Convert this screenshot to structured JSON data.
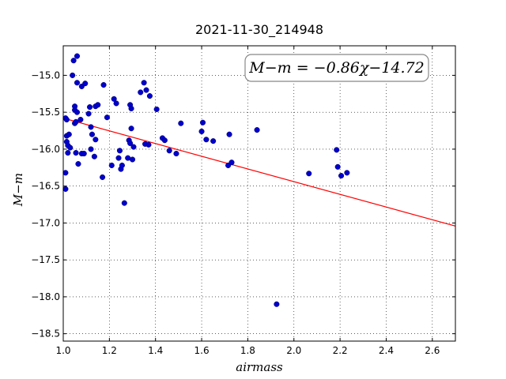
{
  "chart_data": {
    "type": "scatter",
    "title": "2021-11-30_214948",
    "xlabel": "airmass",
    "ylabel": "M−m",
    "xlim": [
      1.0,
      2.7
    ],
    "ylim": [
      -18.6,
      -14.6
    ],
    "y_inverted": true,
    "grid": true,
    "x_ticks": [
      1.0,
      1.2,
      1.4,
      1.6,
      1.8,
      2.0,
      2.2,
      2.4,
      2.6
    ],
    "x_tick_labels": [
      "1.0",
      "1.2",
      "1.4",
      "1.6",
      "1.8",
      "2.0",
      "2.2",
      "2.4",
      "2.6"
    ],
    "y_ticks": [
      -15.0,
      -15.5,
      -16.0,
      -16.5,
      -17.0,
      -17.5,
      -18.0,
      -18.5
    ],
    "y_tick_labels": [
      "−15.0",
      "−15.5",
      "−16.0",
      "−16.5",
      "−17.0",
      "−17.5",
      "−18.0",
      "−18.5"
    ],
    "fit": {
      "slope": -0.86,
      "intercept": -14.72,
      "color": "#ff0000"
    },
    "annotation": "M−m = −0.86χ−14.72",
    "point_color": "#0000cc",
    "points": [
      [
        1.01,
        -16.32
      ],
      [
        1.01,
        -16.54
      ],
      [
        1.01,
        -15.58
      ],
      [
        1.015,
        -15.6
      ],
      [
        1.015,
        -15.82
      ],
      [
        1.015,
        -15.9
      ],
      [
        1.02,
        -15.95
      ],
      [
        1.02,
        -16.05
      ],
      [
        1.025,
        -15.8
      ],
      [
        1.03,
        -15.98
      ],
      [
        1.04,
        -15.0
      ],
      [
        1.045,
        -14.8
      ],
      [
        1.05,
        -15.42
      ],
      [
        1.05,
        -15.47
      ],
      [
        1.05,
        -15.65
      ],
      [
        1.055,
        -15.63
      ],
      [
        1.055,
        -16.05
      ],
      [
        1.06,
        -14.74
      ],
      [
        1.06,
        -15.1
      ],
      [
        1.06,
        -15.5
      ],
      [
        1.065,
        -16.2
      ],
      [
        1.075,
        -15.6
      ],
      [
        1.08,
        -15.15
      ],
      [
        1.08,
        -16.06
      ],
      [
        1.09,
        -16.06
      ],
      [
        1.095,
        -15.11
      ],
      [
        1.11,
        -15.52
      ],
      [
        1.115,
        -15.43
      ],
      [
        1.12,
        -15.7
      ],
      [
        1.12,
        -16.0
      ],
      [
        1.125,
        -15.8
      ],
      [
        1.135,
        -16.1
      ],
      [
        1.14,
        -15.42
      ],
      [
        1.14,
        -15.87
      ],
      [
        1.15,
        -15.4
      ],
      [
        1.17,
        -16.38
      ],
      [
        1.175,
        -15.13
      ],
      [
        1.19,
        -15.57
      ],
      [
        1.21,
        -16.22
      ],
      [
        1.22,
        -15.32
      ],
      [
        1.23,
        -15.38
      ],
      [
        1.24,
        -16.12
      ],
      [
        1.245,
        -16.02
      ],
      [
        1.25,
        -16.27
      ],
      [
        1.255,
        -16.22
      ],
      [
        1.265,
        -16.73
      ],
      [
        1.28,
        -16.12
      ],
      [
        1.285,
        -15.88
      ],
      [
        1.29,
        -15.92
      ],
      [
        1.29,
        -15.4
      ],
      [
        1.295,
        -15.45
      ],
      [
        1.295,
        -15.72
      ],
      [
        1.3,
        -16.14
      ],
      [
        1.305,
        -15.97
      ],
      [
        1.335,
        -15.23
      ],
      [
        1.35,
        -15.1
      ],
      [
        1.355,
        -15.93
      ],
      [
        1.36,
        -15.2
      ],
      [
        1.37,
        -15.94
      ],
      [
        1.375,
        -15.28
      ],
      [
        1.405,
        -15.46
      ],
      [
        1.43,
        -15.85
      ],
      [
        1.44,
        -15.88
      ],
      [
        1.46,
        -16.02
      ],
      [
        1.49,
        -16.06
      ],
      [
        1.51,
        -15.65
      ],
      [
        1.6,
        -15.76
      ],
      [
        1.605,
        -15.64
      ],
      [
        1.62,
        -15.87
      ],
      [
        1.65,
        -15.89
      ],
      [
        1.715,
        -16.22
      ],
      [
        1.72,
        -15.8
      ],
      [
        1.73,
        -16.18
      ],
      [
        1.84,
        -15.74
      ],
      [
        1.925,
        -18.1
      ],
      [
        2.065,
        -16.33
      ],
      [
        2.185,
        -16.01
      ],
      [
        2.19,
        -16.24
      ],
      [
        2.205,
        -16.36
      ],
      [
        2.23,
        -16.32
      ]
    ]
  }
}
